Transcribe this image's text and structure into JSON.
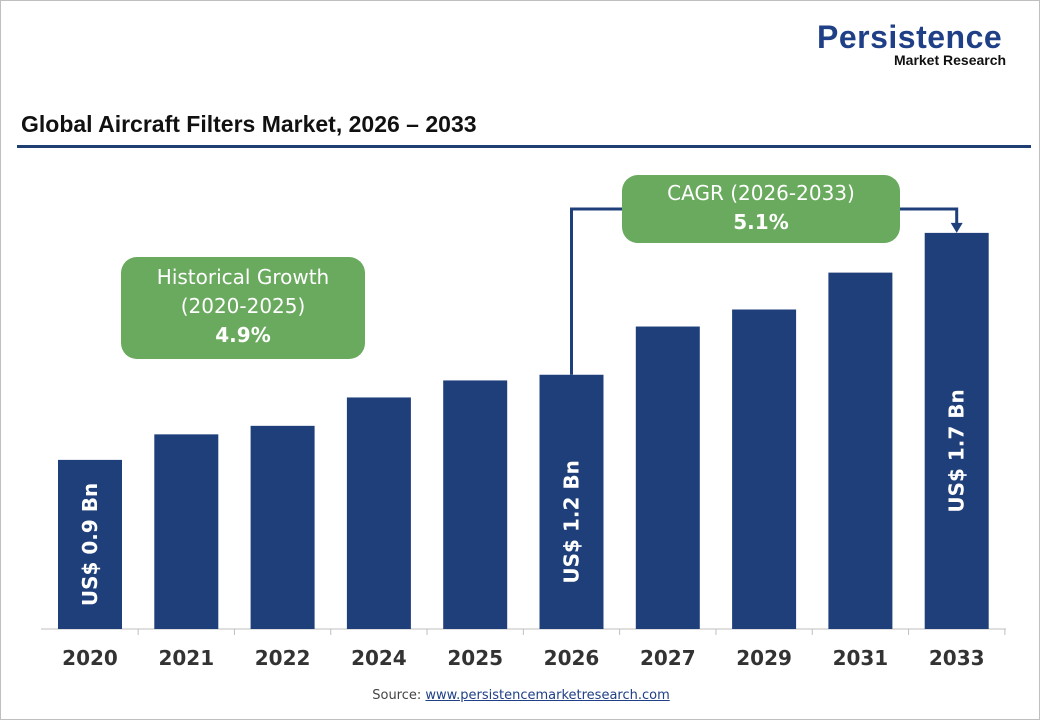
{
  "logo": {
    "line1": "Persistence",
    "line2": "Market Research"
  },
  "title": "Global Aircraft Filters Market, 2026 – 2033",
  "historical": {
    "label": "Historical Growth",
    "period": "(2020-2025)",
    "value": "4.9%"
  },
  "cagr": {
    "label": "CAGR (2026-2033)",
    "value": "5.1%"
  },
  "source": {
    "prefix": "Source: ",
    "link": "www.persistencemarketresearch.com"
  },
  "chart_data": {
    "type": "bar",
    "title": "Global Aircraft Filters Market, 2026 – 2033",
    "categories": [
      "2020",
      "2021",
      "2022",
      "2024",
      "2025",
      "2026",
      "2027",
      "2029",
      "2031",
      "2033"
    ],
    "values": [
      0.9,
      0.99,
      1.02,
      1.12,
      1.18,
      1.2,
      1.37,
      1.43,
      1.56,
      1.7
    ],
    "data_labels": {
      "2020": "US$ 0.9 Bn",
      "2026": "US$ 1.2 Bn",
      "2033": "US$ 1.7 Bn"
    },
    "bar_color": "#1f3f7a",
    "grid": false,
    "xlabel": "",
    "ylabel": ""
  }
}
